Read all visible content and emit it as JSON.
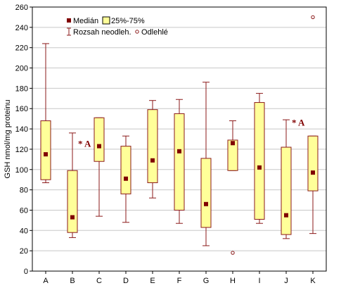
{
  "chart_data": {
    "type": "boxplot",
    "ylabel": "GSH nmol/mg proteinu",
    "ylim": [
      0,
      260
    ],
    "yticks": [
      0,
      20,
      40,
      60,
      80,
      100,
      120,
      140,
      160,
      180,
      200,
      220,
      240,
      260
    ],
    "grid": true,
    "legend": {
      "position": "top-left",
      "median_label": "Medián",
      "box_label": "25%-75%",
      "range_label": "Rozsah neodleh.",
      "outlier_label": "Odlehlé"
    },
    "colors": {
      "box_fill": "#ffff99",
      "box_stroke": "#8b1a1a",
      "median": "#800000",
      "grid": "#c8c8c8"
    },
    "categories": [
      "A",
      "B",
      "C",
      "D",
      "E",
      "F",
      "G",
      "H",
      "I",
      "J",
      "K"
    ],
    "boxes": [
      {
        "category": "A",
        "min": 87,
        "q1": 90,
        "median": 115,
        "q3": 148,
        "max": 224,
        "outliers": []
      },
      {
        "category": "B",
        "min": 33,
        "q1": 38,
        "median": 53,
        "q3": 99,
        "max": 136,
        "outliers": []
      },
      {
        "category": "C",
        "min": 54,
        "q1": 108,
        "median": 123,
        "q3": 151,
        "max": 151,
        "outliers": []
      },
      {
        "category": "D",
        "min": 48,
        "q1": 76,
        "median": 91,
        "q3": 123,
        "max": 133,
        "outliers": []
      },
      {
        "category": "E",
        "min": 72,
        "q1": 87,
        "median": 109,
        "q3": 159,
        "max": 168,
        "outliers": []
      },
      {
        "category": "F",
        "min": 47,
        "q1": 60,
        "median": 118,
        "q3": 155,
        "max": 169,
        "outliers": []
      },
      {
        "category": "G",
        "min": 25,
        "q1": 43,
        "median": 66,
        "q3": 111,
        "max": 186,
        "outliers": []
      },
      {
        "category": "H",
        "min": 99,
        "q1": 99,
        "median": 126,
        "q3": 129,
        "max": 148,
        "outliers": [
          18
        ]
      },
      {
        "category": "I",
        "min": 47,
        "q1": 51,
        "median": 102,
        "q3": 166,
        "max": 175,
        "outliers": []
      },
      {
        "category": "J",
        "min": 32,
        "q1": 36,
        "median": 55,
        "q3": 122,
        "max": 149,
        "outliers": []
      },
      {
        "category": "K",
        "min": 37,
        "q1": 79,
        "median": 97,
        "q3": 133,
        "max": 133,
        "outliers": [
          250
        ]
      }
    ],
    "annotations": [
      {
        "category": "B",
        "y": 125,
        "text": "* A"
      },
      {
        "category": "J",
        "y": 146,
        "text": "* A"
      }
    ]
  }
}
